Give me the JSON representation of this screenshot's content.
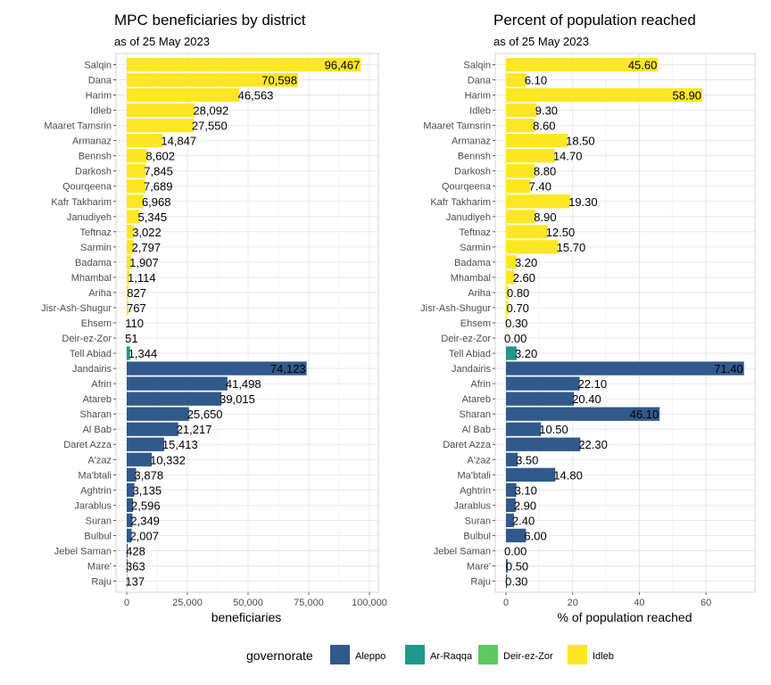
{
  "chart_data": [
    {
      "type": "bar",
      "orientation": "horizontal",
      "title": "MPC beneficiaries by district",
      "subtitle": "as of 25 May 2023",
      "xlabel": "beneficiaries",
      "ylabel": "",
      "xlim": [
        0,
        100000
      ],
      "xticks": [
        0,
        25000,
        50000,
        75000,
        100000
      ],
      "xtick_labels": [
        "0",
        "25,000",
        "50,000",
        "75,000",
        "100,000"
      ],
      "grid": true,
      "categories": [
        "Salqin",
        "Dana",
        "Harim",
        "Idleb",
        "Maaret Tamsrin",
        "Armanaz",
        "Bennsh",
        "Darkosh",
        "Qourqeena",
        "Kafr Takharim",
        "Janudiyeh",
        "Teftnaz",
        "Sarmin",
        "Badama",
        "Mhambal",
        "Ariha",
        "Jisr-Ash-Shugur",
        "Ehsem",
        "Deir-ez-Zor",
        "Tell Abiad",
        "Jandairis",
        "Afrin",
        "Atareb",
        "Sharan",
        "Al Bab",
        "Daret Azza",
        "A'zaz",
        "Ma'btali",
        "Aghtrin",
        "Jarablus",
        "Suran",
        "Bulbul",
        "Jebel Saman",
        "Mare'",
        "Raju"
      ],
      "values": [
        96467,
        70598,
        46563,
        28092,
        27550,
        14847,
        8602,
        7845,
        7689,
        6968,
        5345,
        3022,
        2797,
        1907,
        1114,
        827,
        767,
        110,
        51,
        1344,
        74123,
        41498,
        39015,
        25650,
        21217,
        15413,
        10332,
        3878,
        3135,
        2596,
        2349,
        2007,
        428,
        363,
        137
      ],
      "labels": [
        "96,467",
        "70,598",
        "46,563",
        "28,092",
        "27,550",
        "14,847",
        "8,602",
        "7,845",
        "7,689",
        "6,968",
        "5,345",
        "3,022",
        "2,797",
        "1,907",
        "1,114",
        "827",
        "767",
        "110",
        "51",
        "1,344",
        "74,123",
        "41,498",
        "39,015",
        "25,650",
        "21,217",
        "15,413",
        "10,332",
        "3,878",
        "3,135",
        "2,596",
        "2,349",
        "2,007",
        "428",
        "363",
        "137"
      ],
      "groups": [
        "Idleb",
        "Idleb",
        "Idleb",
        "Idleb",
        "Idleb",
        "Idleb",
        "Idleb",
        "Idleb",
        "Idleb",
        "Idleb",
        "Idleb",
        "Idleb",
        "Idleb",
        "Idleb",
        "Idleb",
        "Idleb",
        "Idleb",
        "Idleb",
        "Deir-ez-Zor",
        "Ar-Raqqa",
        "Aleppo",
        "Aleppo",
        "Aleppo",
        "Aleppo",
        "Aleppo",
        "Aleppo",
        "Aleppo",
        "Aleppo",
        "Aleppo",
        "Aleppo",
        "Aleppo",
        "Aleppo",
        "Aleppo",
        "Aleppo",
        "Aleppo"
      ],
      "label_inside": [
        true,
        true,
        false,
        false,
        false,
        false,
        false,
        false,
        false,
        false,
        false,
        false,
        false,
        false,
        false,
        false,
        false,
        false,
        false,
        false,
        true,
        false,
        false,
        false,
        false,
        false,
        false,
        false,
        false,
        false,
        false,
        false,
        false,
        false,
        false
      ]
    },
    {
      "type": "bar",
      "orientation": "horizontal",
      "title": "Percent of population reached",
      "subtitle": "as of 25 May 2023",
      "xlabel": "% of population reached",
      "ylabel": "",
      "xlim": [
        0,
        72
      ],
      "xticks": [
        0,
        20,
        40,
        60
      ],
      "xtick_labels": [
        "0",
        "20",
        "40",
        "60"
      ],
      "grid": true,
      "categories": [
        "Salqin",
        "Dana",
        "Harim",
        "Idleb",
        "Maaret Tamsrin",
        "Armanaz",
        "Bennsh",
        "Darkosh",
        "Qourqeena",
        "Kafr Takharim",
        "Janudiyeh",
        "Teftnaz",
        "Sarmin",
        "Badama",
        "Mhambal",
        "Ariha",
        "Jisr-Ash-Shugur",
        "Ehsem",
        "Deir-ez-Zor",
        "Tell Abiad",
        "Jandairis",
        "Afrin",
        "Atareb",
        "Sharan",
        "Al Bab",
        "Daret Azza",
        "A'zaz",
        "Ma'btali",
        "Aghtrin",
        "Jarablus",
        "Suran",
        "Bulbul",
        "Jebel Saman",
        "Mare'",
        "Raju"
      ],
      "values": [
        45.6,
        6.1,
        58.9,
        9.3,
        8.6,
        18.5,
        14.7,
        8.8,
        7.4,
        19.3,
        8.9,
        12.5,
        15.7,
        3.2,
        2.6,
        0.8,
        0.7,
        0.3,
        0.0,
        3.2,
        71.4,
        22.1,
        20.4,
        46.1,
        10.5,
        22.3,
        3.5,
        14.8,
        3.1,
        2.9,
        2.4,
        6.0,
        0.0,
        0.5,
        0.3
      ],
      "labels": [
        "45.60",
        "6.10",
        "58.90",
        "9.30",
        "8.60",
        "18.50",
        "14.70",
        "8.80",
        "7.40",
        "19.30",
        "8.90",
        "12.50",
        "15.70",
        "3.20",
        "2.60",
        "0.80",
        "0.70",
        "0.30",
        "0.00",
        "3.20",
        "71.40",
        "22.10",
        "20.40",
        "46.10",
        "10.50",
        "22.30",
        "3.50",
        "14.80",
        "3.10",
        "2.90",
        "2.40",
        "6.00",
        "0.00",
        "0.50",
        "0.30"
      ],
      "groups": [
        "Idleb",
        "Idleb",
        "Idleb",
        "Idleb",
        "Idleb",
        "Idleb",
        "Idleb",
        "Idleb",
        "Idleb",
        "Idleb",
        "Idleb",
        "Idleb",
        "Idleb",
        "Idleb",
        "Idleb",
        "Idleb",
        "Idleb",
        "Idleb",
        "Deir-ez-Zor",
        "Ar-Raqqa",
        "Aleppo",
        "Aleppo",
        "Aleppo",
        "Aleppo",
        "Aleppo",
        "Aleppo",
        "Aleppo",
        "Aleppo",
        "Aleppo",
        "Aleppo",
        "Aleppo",
        "Aleppo",
        "Aleppo",
        "Aleppo",
        "Aleppo"
      ],
      "label_inside": [
        true,
        false,
        true,
        false,
        false,
        false,
        false,
        false,
        false,
        false,
        false,
        false,
        false,
        false,
        false,
        false,
        false,
        false,
        false,
        false,
        true,
        false,
        false,
        true,
        false,
        false,
        false,
        false,
        false,
        false,
        false,
        false,
        false,
        false,
        false
      ]
    }
  ],
  "legend": {
    "title": "governorate",
    "position": "bottom",
    "items": [
      {
        "label": "Aleppo",
        "color": "#31598b"
      },
      {
        "label": "Ar-Raqqa",
        "color": "#21998a"
      },
      {
        "label": "Deir-ez-Zor",
        "color": "#5ec862"
      },
      {
        "label": "Idleb",
        "color": "#fde725"
      }
    ]
  }
}
